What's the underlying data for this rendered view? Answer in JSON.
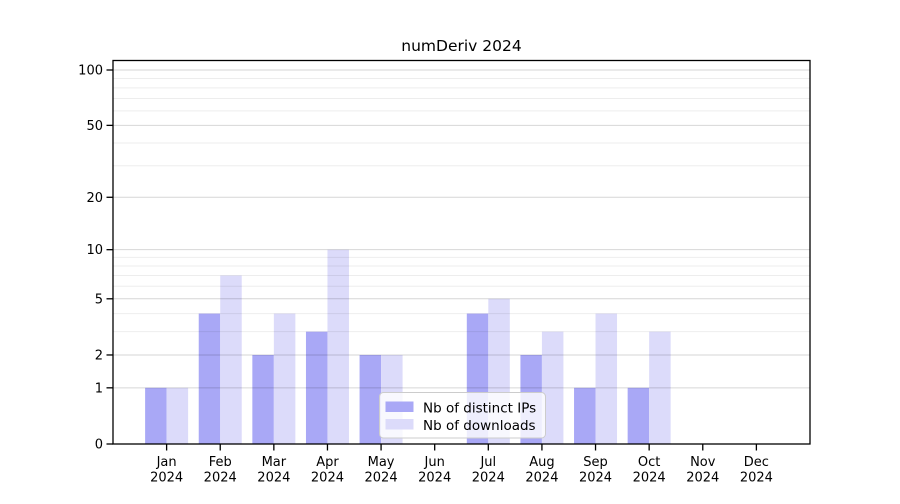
{
  "figure": {
    "title": "numDeriv 2024"
  },
  "chart_data": {
    "type": "bar",
    "title": "numDeriv 2024",
    "categories": [
      "Jan 2024",
      "Feb 2024",
      "Mar 2024",
      "Apr 2024",
      "May 2024",
      "Jun 2024",
      "Jul 2024",
      "Aug 2024",
      "Sep 2024",
      "Oct 2024",
      "Nov 2024",
      "Dec 2024"
    ],
    "series": [
      {
        "name": "Nb of distinct IPs",
        "color": "#a9a8f6",
        "values": [
          1,
          4,
          2,
          3,
          2,
          0,
          4,
          2,
          1,
          1,
          0,
          0
        ]
      },
      {
        "name": "Nb of downloads",
        "color": "#dcdbfa",
        "values": [
          1,
          7,
          4,
          10,
          2,
          0,
          5,
          3,
          4,
          3,
          0,
          0
        ]
      }
    ],
    "y_scale": "log10(1+x)",
    "y_ticks": [
      0,
      1,
      2,
      5,
      10,
      20,
      50,
      100
    ],
    "y_minor_ticks": [
      3,
      4,
      6,
      7,
      8,
      9,
      30,
      40,
      60,
      70,
      80,
      90
    ],
    "ylim": [
      0,
      112
    ],
    "xlabel": "",
    "ylabel": "",
    "grid": "horizontal",
    "legend_position": "lower center",
    "colors": {
      "axis": "#000000",
      "major_grid": "rgba(0,0,0,0.16)",
      "minor_grid": "rgba(0,0,0,0.07)",
      "legend_bg": "rgba(255,255,255,0.8)",
      "legend_border": "#cccccc"
    }
  }
}
